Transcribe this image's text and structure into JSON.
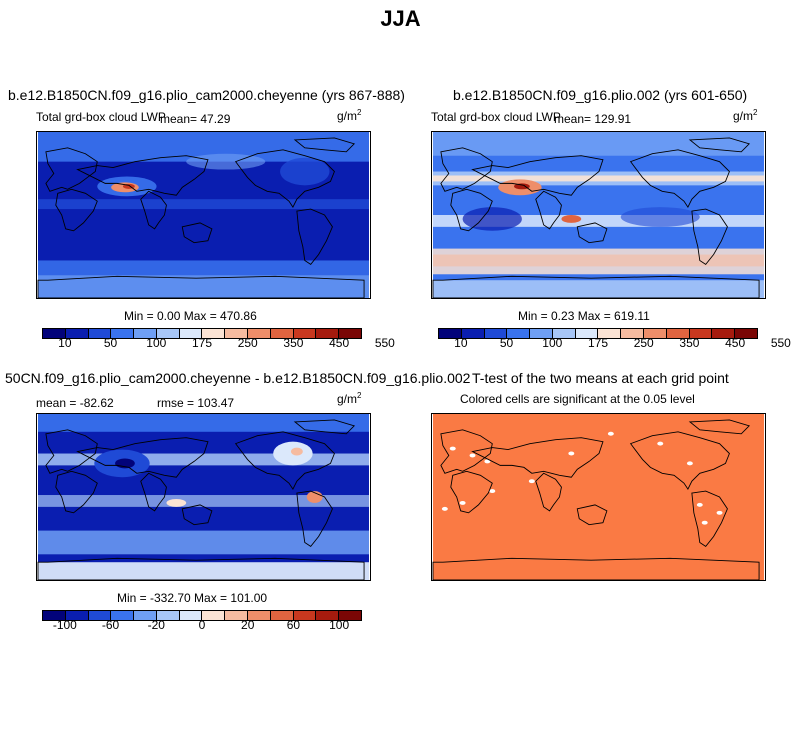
{
  "figure": {
    "title": "JJA"
  },
  "panels": [
    {
      "title": "b.e12.B1850CN.f09_g16.plio_cam2000.cheyenne (yrs 867-888)",
      "variable": "Total grd-box cloud LWP",
      "mean_label": "mean=  47.29",
      "units_base": "g/m",
      "units_exp": "2",
      "minmax_label": "Min =    0.00 Max = 470.86",
      "colorbar_ticks": [
        "10",
        "50",
        "100",
        "175",
        "250",
        "350",
        "450",
        "550"
      ],
      "colorbar_colors": [
        "#02037a",
        "#0a1eb0",
        "#1f4ad6",
        "#3a73ee",
        "#6f9ff4",
        "#a7c6f7",
        "#dbe8fb",
        "#fbe3d4",
        "#f6bba0",
        "#ee8e6a",
        "#e06440",
        "#c8381f",
        "#a61b0e",
        "#7a0605"
      ]
    },
    {
      "title": "b.e12.B1850CN.f09_g16.plio.002 (yrs 601-650)",
      "variable": "Total grd-box cloud LWP",
      "mean_label": "mean= 129.91",
      "units_base": "g/m",
      "units_exp": "2",
      "minmax_label": "Min =    0.23 Max = 619.11",
      "colorbar_ticks": [
        "10",
        "50",
        "100",
        "175",
        "250",
        "350",
        "450",
        "550"
      ],
      "colorbar_colors": [
        "#02037a",
        "#0a1eb0",
        "#1f4ad6",
        "#3a73ee",
        "#6f9ff4",
        "#a7c6f7",
        "#dbe8fb",
        "#fbe3d4",
        "#f6bba0",
        "#ee8e6a",
        "#e06440",
        "#c8381f",
        "#a61b0e",
        "#7a0605"
      ]
    },
    {
      "title": "50CN.f09_g16.plio_cam2000.cheyenne - b.e12.B1850CN.f09_g16.plio.002",
      "mean_label": "mean = -82.62",
      "rmse_label": "rmse = 103.47",
      "units_base": "g/m",
      "units_exp": "2",
      "minmax_label": "Min = -332.70 Max = 101.00",
      "colorbar_ticks": [
        "-100",
        "-60",
        "-20",
        "0",
        "20",
        "60",
        "100"
      ],
      "colorbar_colors": [
        "#02037a",
        "#0a1eb0",
        "#1f4ad6",
        "#3a73ee",
        "#6f9ff4",
        "#a7c6f7",
        "#dbe8fb",
        "#fbe3d4",
        "#f6bba0",
        "#ee8e6a",
        "#e06440",
        "#c8381f",
        "#a61b0e",
        "#7a0605"
      ]
    },
    {
      "title": "T-test of the two means at each grid point",
      "subtitle": "Colored cells are significant at the 0.05 level",
      "fill_color": "#fa7a44"
    }
  ],
  "chart_data": [
    {
      "type": "heatmap",
      "title": "b.e12.B1850CN.f09_g16.plio_cam2000.cheyenne (yrs 867-888)",
      "variable": "Total grd-box cloud LWP",
      "units": "g/m^2",
      "season": "JJA",
      "mean": 47.29,
      "min": 0.0,
      "max": 470.86,
      "contour_levels": [
        10,
        25,
        50,
        75,
        100,
        125,
        175,
        200,
        250,
        300,
        350,
        400,
        450,
        500,
        550
      ]
    },
    {
      "type": "heatmap",
      "title": "b.e12.B1850CN.f09_g16.plio.002 (yrs 601-650)",
      "variable": "Total grd-box cloud LWP",
      "units": "g/m^2",
      "season": "JJA",
      "mean": 129.91,
      "min": 0.23,
      "max": 619.11,
      "contour_levels": [
        10,
        25,
        50,
        75,
        100,
        125,
        175,
        200,
        250,
        300,
        350,
        400,
        450,
        500,
        550
      ]
    },
    {
      "type": "heatmap",
      "title": "50CN.f09_g16.plio_cam2000.cheyenne - b.e12.B1850CN.f09_g16.plio.002",
      "units": "g/m^2",
      "mean": -82.62,
      "rmse": 103.47,
      "min": -332.7,
      "max": 101.0,
      "contour_levels": [
        -100,
        -80,
        -60,
        -40,
        -20,
        -10,
        0,
        10,
        20,
        40,
        60,
        80,
        100
      ]
    },
    {
      "type": "heatmap",
      "title": "T-test of the two means at each grid point",
      "subtitle": "Colored cells are significant at the 0.05 level",
      "significance_level": 0.05
    }
  ]
}
